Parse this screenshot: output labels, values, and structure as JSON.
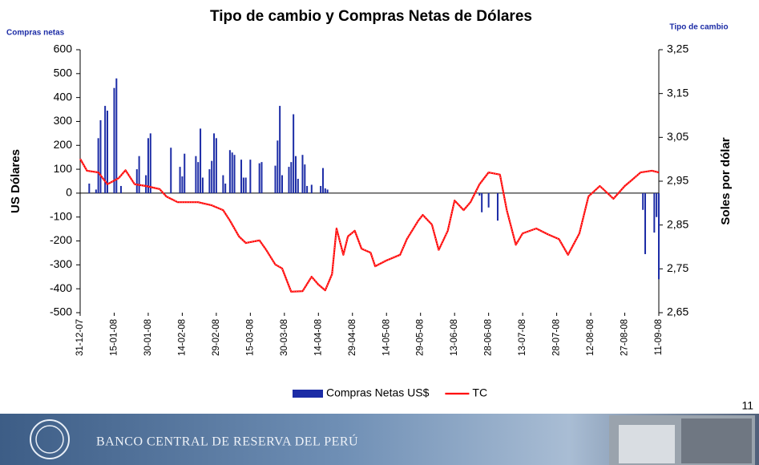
{
  "chart_data": {
    "type": "combo",
    "title": "Tipo de cambio y Compras Netas de Dólares",
    "y_label_top": "Compras netas",
    "y2_label_top": "Tipo de cambio",
    "y_title": "US Dólares",
    "y2_title": "Soles por dólar",
    "xlim": [
      "31-12-07",
      "11-09-08"
    ],
    "xticks": [
      "31-12-07",
      "15-01-08",
      "30-01-08",
      "14-02-08",
      "29-02-08",
      "15-03-08",
      "30-03-08",
      "14-04-08",
      "29-04-08",
      "14-05-08",
      "29-05-08",
      "13-06-08",
      "28-06-08",
      "13-07-08",
      "28-07-08",
      "12-08-08",
      "27-08-08",
      "11-09-08"
    ],
    "ylim": [
      -500,
      600
    ],
    "yticks": [
      -500,
      -400,
      -300,
      -200,
      -100,
      0,
      100,
      200,
      300,
      400,
      500,
      600
    ],
    "y2lim": [
      2.65,
      3.25
    ],
    "y2ticks": [
      {
        "value": 2.65,
        "label": "2,65"
      },
      {
        "value": 2.75,
        "label": "2,75"
      },
      {
        "value": 2.85,
        "label": "2,85"
      },
      {
        "value": 2.95,
        "label": "2,95"
      },
      {
        "value": 3.05,
        "label": "3,05"
      },
      {
        "value": 3.15,
        "label": "3,15"
      },
      {
        "value": 3.25,
        "label": "3,25"
      }
    ],
    "legend": "bottom",
    "series": [
      {
        "name": "Compras Netas US$",
        "type": "bar",
        "color": "#1c2ca6",
        "x": [
          "04-01-08",
          "07-01-08",
          "08-01-08",
          "09-01-08",
          "11-01-08",
          "12-01-08",
          "15-01-08",
          "16-01-08",
          "18-01-08",
          "25-01-08",
          "26-01-08",
          "29-01-08",
          "30-01-08",
          "31-01-08",
          "09-02-08",
          "13-02-08",
          "14-02-08",
          "15-02-08",
          "20-02-08",
          "21-02-08",
          "22-02-08",
          "23-02-08",
          "26-02-08",
          "27-02-08",
          "28-02-08",
          "29-02-08",
          "03-03-08",
          "04-03-08",
          "06-03-08",
          "07-03-08",
          "08-03-08",
          "11-03-08",
          "12-03-08",
          "13-03-08",
          "15-03-08",
          "19-03-08",
          "20-03-08",
          "26-03-08",
          "27-03-08",
          "28-03-08",
          "29-03-08",
          "01-04-08",
          "02-04-08",
          "03-04-08",
          "04-04-08",
          "05-04-08",
          "07-04-08",
          "08-04-08",
          "09-04-08",
          "11-04-08",
          "15-04-08",
          "16-04-08",
          "17-04-08",
          "18-04-08",
          "24-06-08",
          "25-06-08",
          "28-06-08",
          "02-07-08",
          "04-09-08",
          "05-09-08",
          "09-09-08",
          "10-09-08",
          "11-09-08"
        ],
        "values": [
          40,
          15,
          230,
          305,
          365,
          345,
          440,
          480,
          30,
          100,
          155,
          75,
          230,
          250,
          190,
          110,
          70,
          165,
          155,
          130,
          270,
          65,
          100,
          135,
          250,
          230,
          75,
          40,
          180,
          170,
          160,
          140,
          65,
          65,
          140,
          125,
          130,
          115,
          220,
          365,
          75,
          110,
          130,
          330,
          155,
          60,
          160,
          120,
          30,
          35,
          30,
          105,
          20,
          15,
          -10,
          -80,
          -60,
          -115,
          -70,
          -255,
          -165,
          -100,
          -360
        ]
      },
      {
        "name": "TC",
        "type": "line",
        "axis": "y2",
        "color": "#ff0000",
        "x": [
          "31-12-07",
          "03-01-08",
          "08-01-08",
          "12-01-08",
          "17-01-08",
          "20-01-08",
          "24-01-08",
          "29-01-08",
          "04-02-08",
          "07-02-08",
          "12-02-08",
          "21-02-08",
          "27-02-08",
          "03-03-08",
          "06-03-08",
          "10-03-08",
          "13-03-08",
          "19-03-08",
          "22-03-08",
          "26-03-08",
          "29-03-08",
          "02-04-08",
          "07-04-08",
          "11-04-08",
          "14-04-08",
          "17-04-08",
          "20-04-08",
          "22-04-08",
          "25-04-08",
          "27-04-08",
          "30-04-08",
          "03-05-08",
          "07-05-08",
          "09-05-08",
          "14-05-08",
          "20-05-08",
          "23-05-08",
          "28-05-08",
          "30-05-08",
          "03-06-08",
          "06-06-08",
          "10-06-08",
          "13-06-08",
          "17-06-08",
          "20-06-08",
          "24-06-08",
          "28-06-08",
          "03-07-08",
          "06-07-08",
          "10-07-08",
          "13-07-08",
          "19-07-08",
          "24-07-08",
          "29-07-08",
          "02-08-08",
          "07-08-08",
          "11-08-08",
          "16-08-08",
          "22-08-08",
          "27-08-08",
          "30-08-08",
          "03-09-08",
          "08-09-08",
          "11-09-08"
        ],
        "values": [
          3.001,
          2.974,
          2.97,
          2.943,
          2.957,
          2.975,
          2.943,
          2.939,
          2.932,
          2.915,
          2.902,
          2.902,
          2.895,
          2.884,
          2.86,
          2.824,
          2.809,
          2.815,
          2.793,
          2.76,
          2.751,
          2.698,
          2.699,
          2.732,
          2.714,
          2.701,
          2.738,
          2.842,
          2.782,
          2.824,
          2.837,
          2.796,
          2.787,
          2.756,
          2.769,
          2.782,
          2.818,
          2.86,
          2.873,
          2.851,
          2.793,
          2.837,
          2.906,
          2.884,
          2.902,
          2.943,
          2.97,
          2.965,
          2.884,
          2.805,
          2.831,
          2.842,
          2.829,
          2.818,
          2.782,
          2.831,
          2.915,
          2.939,
          2.91,
          2.939,
          2.952,
          2.97,
          2.974,
          2.97
        ]
      }
    ]
  },
  "footer": {
    "bank": "BANCO CENTRAL DE RESERVA DEL PERÚ",
    "page": "11"
  }
}
